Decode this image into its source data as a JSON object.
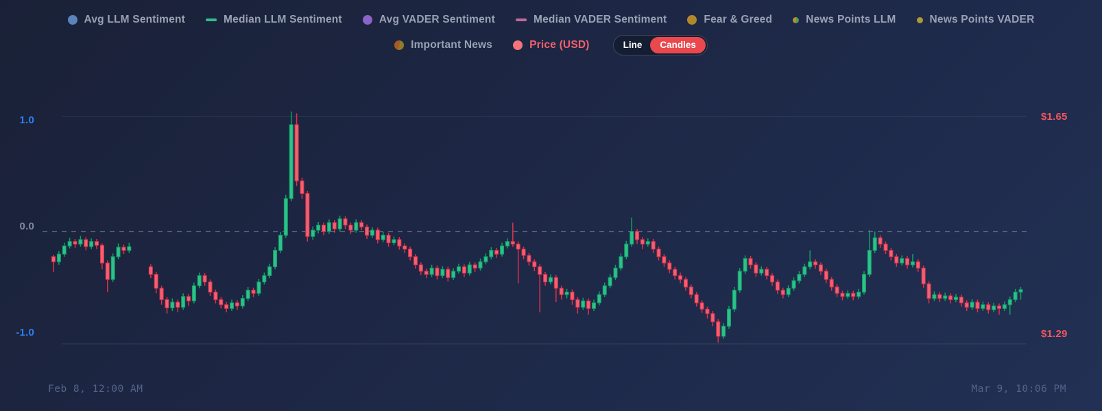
{
  "legend": {
    "row1": [
      {
        "label": "Avg LLM Sentiment",
        "marker": "circle",
        "color": "#5b84ba"
      },
      {
        "label": "Median LLM Sentiment",
        "marker": "dash",
        "color": "#33bd8c"
      },
      {
        "label": "Avg VADER Sentiment",
        "marker": "circle",
        "color": "#8a64c8"
      },
      {
        "label": "Median VADER Sentiment",
        "marker": "dash",
        "color": "#bf6a9b"
      },
      {
        "label": "Fear & Greed",
        "marker": "circle",
        "color": "#b3882b"
      },
      {
        "label": "News Points LLM",
        "marker": "dot",
        "color": "#bd8f2e",
        "color2": "#4d9e53"
      },
      {
        "label": "News Points VADER",
        "marker": "dot",
        "color": "#ab9b32"
      }
    ],
    "row2": [
      {
        "label": "Important News",
        "marker": "circle",
        "color": "#a85a20",
        "color2": "#8f7c2a"
      },
      {
        "label": "Price (USD)",
        "marker": "circle",
        "color": "#f4747c",
        "label_color": "#f4606c"
      }
    ],
    "toggle": {
      "options": [
        "Line",
        "Candles"
      ],
      "selected": "Candles",
      "selected_color": "#e9484f"
    }
  },
  "axes": {
    "left": [
      {
        "label": "1.0",
        "color": "#2e7ef5"
      },
      {
        "label": "0.0",
        "color": "#7e89a6"
      },
      {
        "label": "-1.0",
        "color": "#2e7ef5"
      }
    ],
    "right": [
      {
        "label": "$1.65",
        "color": "#f4565f"
      },
      {
        "label": "$1.29",
        "color": "#f4565f"
      }
    ],
    "x_start": "Feb 8, 12:00 AM",
    "x_end": "Mar 9, 10:06 PM"
  },
  "chart_data": {
    "type": "candlestick",
    "series_name": "Price (USD)",
    "x_range": [
      "Feb 8, 12:00 AM",
      "Mar 9, 10:06 PM"
    ],
    "price_axis": {
      "min": 1.29,
      "max": 1.65,
      "tick_labels": [
        "$1.65",
        "$1.29"
      ]
    },
    "sentiment_axis": {
      "min": -1.0,
      "max": 1.0,
      "tick_labels": [
        "1.0",
        "0.0",
        "-1.0"
      ],
      "zero_line_dashed": true
    },
    "grid": "horizontal-only",
    "up_color": "#2fc08b",
    "up_border": "#10a167",
    "down_color": "#f06273",
    "down_border": "#e1304a",
    "candles": [
      [
        1.428,
        1.431,
        1.404,
        1.42
      ],
      [
        1.42,
        1.437,
        1.415,
        1.432
      ],
      [
        1.432,
        1.45,
        1.428,
        1.445
      ],
      [
        1.445,
        1.458,
        1.441,
        1.452
      ],
      [
        1.452,
        1.456,
        1.442,
        1.448
      ],
      [
        1.448,
        1.461,
        1.444,
        1.455
      ],
      [
        1.455,
        1.459,
        1.438,
        1.444
      ],
      [
        1.444,
        1.457,
        1.44,
        1.452
      ],
      [
        1.452,
        1.456,
        1.44,
        1.446
      ],
      [
        1.446,
        1.449,
        1.408,
        1.418
      ],
      [
        1.418,
        1.422,
        1.372,
        1.392
      ],
      [
        1.392,
        1.433,
        1.388,
        1.428
      ],
      [
        1.428,
        1.449,
        1.424,
        1.443
      ],
      [
        1.443,
        1.447,
        1.432,
        1.438
      ],
      [
        1.438,
        1.45,
        1.434,
        1.444
      ],
      null,
      null,
      null,
      [
        1.412,
        1.416,
        1.394,
        1.4
      ],
      [
        1.4,
        1.404,
        1.37,
        1.378
      ],
      [
        1.378,
        1.382,
        1.352,
        1.36
      ],
      [
        1.36,
        1.364,
        1.338,
        1.347
      ],
      [
        1.347,
        1.362,
        1.342,
        1.356
      ],
      [
        1.356,
        1.36,
        1.34,
        1.348
      ],
      [
        1.348,
        1.37,
        1.344,
        1.365
      ],
      [
        1.365,
        1.369,
        1.35,
        1.358
      ],
      [
        1.358,
        1.387,
        1.354,
        1.382
      ],
      [
        1.382,
        1.403,
        1.378,
        1.398
      ],
      [
        1.398,
        1.402,
        1.382,
        1.388
      ],
      [
        1.388,
        1.392,
        1.366,
        1.372
      ],
      [
        1.372,
        1.376,
        1.354,
        1.36
      ],
      [
        1.36,
        1.364,
        1.346,
        1.352
      ],
      [
        1.352,
        1.356,
        1.34,
        1.346
      ],
      [
        1.346,
        1.36,
        1.342,
        1.355
      ],
      [
        1.355,
        1.359,
        1.344,
        1.35
      ],
      [
        1.35,
        1.367,
        1.346,
        1.362
      ],
      [
        1.362,
        1.38,
        1.358,
        1.375
      ],
      [
        1.375,
        1.379,
        1.364,
        1.37
      ],
      [
        1.37,
        1.393,
        1.366,
        1.388
      ],
      [
        1.388,
        1.403,
        1.384,
        1.398
      ],
      [
        1.398,
        1.417,
        1.394,
        1.412
      ],
      [
        1.412,
        1.443,
        1.408,
        1.438
      ],
      [
        1.438,
        1.467,
        1.434,
        1.462
      ],
      [
        1.462,
        1.526,
        1.458,
        1.52
      ],
      [
        1.52,
        1.658,
        1.516,
        1.637
      ],
      [
        1.637,
        1.655,
        1.54,
        1.548
      ],
      [
        1.548,
        1.553,
        1.52,
        1.528
      ],
      [
        1.528,
        1.532,
        1.452,
        1.46
      ],
      [
        1.46,
        1.476,
        1.455,
        1.47
      ],
      [
        1.47,
        1.483,
        1.465,
        1.478
      ],
      [
        1.478,
        1.482,
        1.462,
        1.468
      ],
      [
        1.468,
        1.487,
        1.464,
        1.482
      ],
      [
        1.482,
        1.486,
        1.466,
        1.472
      ],
      [
        1.472,
        1.493,
        1.468,
        1.488
      ],
      [
        1.488,
        1.492,
        1.472,
        1.478
      ],
      [
        1.478,
        1.482,
        1.464,
        1.47
      ],
      [
        1.47,
        1.487,
        1.466,
        1.482
      ],
      [
        1.482,
        1.486,
        1.47,
        1.475
      ],
      [
        1.475,
        1.479,
        1.456,
        1.462
      ],
      [
        1.462,
        1.475,
        1.458,
        1.47
      ],
      [
        1.47,
        1.474,
        1.449,
        1.455
      ],
      [
        1.455,
        1.467,
        1.451,
        1.462
      ],
      [
        1.462,
        1.466,
        1.444,
        1.45
      ],
      [
        1.45,
        1.46,
        1.446,
        1.455
      ],
      [
        1.455,
        1.459,
        1.439,
        1.445
      ],
      [
        1.445,
        1.449,
        1.434,
        1.44
      ],
      [
        1.44,
        1.444,
        1.422,
        1.428
      ],
      [
        1.428,
        1.432,
        1.409,
        1.415
      ],
      [
        1.415,
        1.419,
        1.399,
        1.405
      ],
      [
        1.405,
        1.409,
        1.394,
        1.4
      ],
      [
        1.4,
        1.415,
        1.396,
        1.41
      ],
      [
        1.41,
        1.414,
        1.392,
        1.398
      ],
      [
        1.398,
        1.413,
        1.394,
        1.408
      ],
      [
        1.408,
        1.412,
        1.389,
        1.395
      ],
      [
        1.395,
        1.41,
        1.391,
        1.405
      ],
      [
        1.405,
        1.417,
        1.401,
        1.412
      ],
      [
        1.412,
        1.416,
        1.396,
        1.402
      ],
      [
        1.402,
        1.42,
        1.398,
        1.415
      ],
      [
        1.415,
        1.419,
        1.404,
        1.41
      ],
      [
        1.41,
        1.425,
        1.406,
        1.42
      ],
      [
        1.42,
        1.433,
        1.416,
        1.428
      ],
      [
        1.428,
        1.443,
        1.424,
        1.438
      ],
      [
        1.438,
        1.442,
        1.426,
        1.432
      ],
      [
        1.432,
        1.45,
        1.428,
        1.445
      ],
      [
        1.445,
        1.457,
        1.441,
        1.452
      ],
      [
        1.452,
        1.482,
        1.444,
        1.448
      ],
      [
        1.448,
        1.452,
        1.386,
        1.44
      ],
      [
        1.44,
        1.444,
        1.424,
        1.43
      ],
      [
        1.43,
        1.434,
        1.414,
        1.42
      ],
      [
        1.42,
        1.424,
        1.405,
        1.412
      ],
      [
        1.412,
        1.416,
        1.34,
        1.4
      ],
      [
        1.4,
        1.404,
        1.382,
        1.388
      ],
      [
        1.388,
        1.4,
        1.384,
        1.395
      ],
      [
        1.395,
        1.399,
        1.356,
        1.378
      ],
      [
        1.378,
        1.382,
        1.36,
        1.368
      ],
      [
        1.368,
        1.377,
        1.362,
        1.372
      ],
      [
        1.372,
        1.376,
        1.352,
        1.36
      ],
      [
        1.36,
        1.364,
        1.338,
        1.348
      ],
      [
        1.348,
        1.363,
        1.344,
        1.358
      ],
      [
        1.358,
        1.362,
        1.336,
        1.346
      ],
      [
        1.346,
        1.36,
        1.342,
        1.355
      ],
      [
        1.355,
        1.373,
        1.351,
        1.368
      ],
      [
        1.368,
        1.387,
        1.364,
        1.382
      ],
      [
        1.382,
        1.4,
        1.378,
        1.395
      ],
      [
        1.395,
        1.415,
        1.391,
        1.41
      ],
      [
        1.41,
        1.433,
        1.406,
        1.428
      ],
      [
        1.428,
        1.453,
        1.424,
        1.448
      ],
      [
        1.448,
        1.49,
        1.444,
        1.468
      ],
      [
        1.468,
        1.472,
        1.448,
        1.455
      ],
      [
        1.455,
        1.459,
        1.44,
        1.448
      ],
      [
        1.448,
        1.457,
        1.444,
        1.452
      ],
      [
        1.452,
        1.456,
        1.434,
        1.44
      ],
      [
        1.44,
        1.444,
        1.422,
        1.428
      ],
      [
        1.428,
        1.432,
        1.412,
        1.418
      ],
      [
        1.418,
        1.422,
        1.402,
        1.408
      ],
      [
        1.408,
        1.412,
        1.392,
        1.398
      ],
      [
        1.398,
        1.403,
        1.386,
        1.392
      ],
      [
        1.392,
        1.396,
        1.374,
        1.38
      ],
      [
        1.38,
        1.384,
        1.362,
        1.368
      ],
      [
        1.368,
        1.372,
        1.349,
        1.355
      ],
      [
        1.355,
        1.359,
        1.339,
        1.345
      ],
      [
        1.345,
        1.349,
        1.33,
        1.338
      ],
      [
        1.338,
        1.342,
        1.318,
        1.325
      ],
      [
        1.325,
        1.329,
        1.292,
        1.302
      ],
      [
        1.302,
        1.323,
        1.298,
        1.318
      ],
      [
        1.318,
        1.35,
        1.314,
        1.345
      ],
      [
        1.345,
        1.38,
        1.341,
        1.375
      ],
      [
        1.375,
        1.41,
        1.371,
        1.405
      ],
      [
        1.405,
        1.43,
        1.401,
        1.425
      ],
      [
        1.425,
        1.429,
        1.409,
        1.415
      ],
      [
        1.415,
        1.419,
        1.396,
        1.402
      ],
      [
        1.402,
        1.413,
        1.398,
        1.408
      ],
      [
        1.408,
        1.412,
        1.392,
        1.398
      ],
      [
        1.398,
        1.402,
        1.382,
        1.388
      ],
      [
        1.388,
        1.392,
        1.369,
        1.375
      ],
      [
        1.375,
        1.379,
        1.362,
        1.368
      ],
      [
        1.368,
        1.383,
        1.364,
        1.378
      ],
      [
        1.378,
        1.395,
        1.374,
        1.39
      ],
      [
        1.39,
        1.405,
        1.386,
        1.4
      ],
      [
        1.4,
        1.417,
        1.396,
        1.412
      ],
      [
        1.412,
        1.438,
        1.408,
        1.42
      ],
      [
        1.42,
        1.424,
        1.409,
        1.415
      ],
      [
        1.415,
        1.419,
        1.399,
        1.405
      ],
      [
        1.405,
        1.409,
        1.386,
        1.392
      ],
      [
        1.392,
        1.396,
        1.374,
        1.38
      ],
      [
        1.38,
        1.384,
        1.364,
        1.37
      ],
      [
        1.37,
        1.374,
        1.359,
        1.365
      ],
      [
        1.365,
        1.375,
        1.361,
        1.37
      ],
      [
        1.37,
        1.374,
        1.359,
        1.365
      ],
      [
        1.365,
        1.377,
        1.361,
        1.372
      ],
      [
        1.372,
        1.405,
        1.368,
        1.4
      ],
      [
        1.4,
        1.47,
        1.396,
        1.438
      ],
      [
        1.438,
        1.468,
        1.434,
        1.458
      ],
      [
        1.458,
        1.462,
        1.442,
        1.448
      ],
      [
        1.448,
        1.452,
        1.432,
        1.438
      ],
      [
        1.438,
        1.442,
        1.422,
        1.428
      ],
      [
        1.428,
        1.432,
        1.412,
        1.418
      ],
      [
        1.418,
        1.43,
        1.414,
        1.425
      ],
      [
        1.425,
        1.429,
        1.409,
        1.415
      ],
      [
        1.415,
        1.432,
        1.411,
        1.42
      ],
      [
        1.42,
        1.424,
        1.404,
        1.41
      ],
      [
        1.41,
        1.414,
        1.379,
        1.385
      ],
      [
        1.385,
        1.389,
        1.354,
        1.362
      ],
      [
        1.362,
        1.373,
        1.358,
        1.368
      ],
      [
        1.368,
        1.372,
        1.356,
        1.362
      ],
      [
        1.362,
        1.371,
        1.358,
        1.366
      ],
      [
        1.366,
        1.37,
        1.354,
        1.36
      ],
      [
        1.36,
        1.369,
        1.356,
        1.364
      ],
      [
        1.364,
        1.368,
        1.349,
        1.355
      ],
      [
        1.355,
        1.359,
        1.342,
        1.348
      ],
      [
        1.348,
        1.361,
        1.344,
        1.356
      ],
      [
        1.356,
        1.36,
        1.34,
        1.346
      ],
      [
        1.346,
        1.357,
        1.342,
        1.352
      ],
      [
        1.352,
        1.356,
        1.338,
        1.344
      ],
      [
        1.344,
        1.355,
        1.34,
        1.35
      ],
      [
        1.35,
        1.354,
        1.336,
        1.346
      ],
      [
        1.346,
        1.357,
        1.342,
        1.352
      ],
      [
        1.352,
        1.365,
        1.336,
        1.36
      ],
      [
        1.36,
        1.377,
        1.356,
        1.372
      ],
      [
        1.372,
        1.38,
        1.36,
        1.376
      ]
    ]
  }
}
